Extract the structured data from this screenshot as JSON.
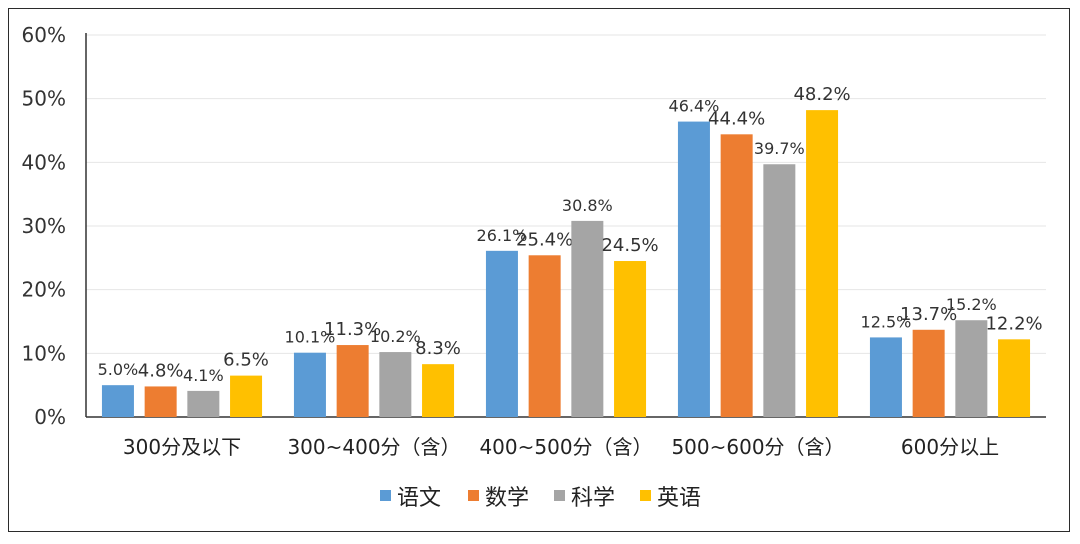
{
  "chart_data": {
    "type": "bar",
    "categories": [
      "300分及以下",
      "300~400分（含）",
      "400~500分（含）",
      "500~600分（含）",
      "600分以上"
    ],
    "series": [
      {
        "name": "语文",
        "color": "#5B9BD5",
        "values": [
          5.0,
          10.1,
          26.1,
          46.4,
          12.5
        ],
        "labels": [
          "5.0%",
          "10.1%",
          "26.1%",
          "46.4%",
          "12.5%"
        ]
      },
      {
        "name": "数学",
        "color": "#ED7D31",
        "values": [
          4.8,
          11.3,
          25.4,
          44.4,
          13.7
        ],
        "labels": [
          "4.8%",
          "11.3%",
          "25.4%",
          "44.4%",
          "13.7%"
        ]
      },
      {
        "name": "科学",
        "color": "#A5A5A5",
        "values": [
          4.1,
          10.2,
          30.8,
          39.7,
          15.2
        ],
        "labels": [
          "4.1%",
          "10.2%",
          "30.8%",
          "39.7%",
          "15.2%"
        ]
      },
      {
        "name": "英语",
        "color": "#FFC000",
        "values": [
          6.5,
          8.3,
          24.5,
          48.2,
          12.2
        ],
        "labels": [
          "6.5%",
          "8.3%",
          "24.5%",
          "48.2%",
          "12.2%"
        ]
      }
    ],
    "yticks": [
      "0%",
      "10%",
      "20%",
      "30%",
      "40%",
      "50%",
      "60%"
    ],
    "ylim": [
      0,
      60
    ],
    "grid": true,
    "legend_position": "bottom",
    "title": "",
    "xlabel": "",
    "ylabel": ""
  }
}
